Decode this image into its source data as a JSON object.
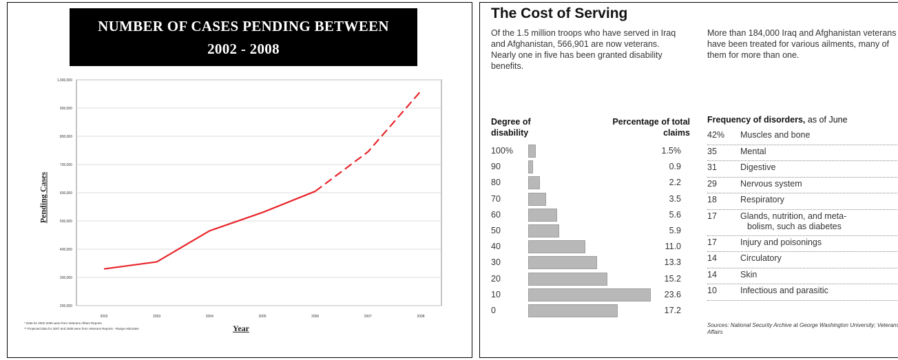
{
  "left_chart": {
    "title_line1": "NUMBER OF CASES PENDING BETWEEN",
    "title_line2": "2002 - 2008",
    "ylabel": "Pending Cases",
    "xlabel": "Year",
    "footnote1": "* Data for 2002-2006 were from Veterans Affairs Reports",
    "footnote2": "** Projected data for 2007 and 2008 were from Veterans Reports - Range estimates"
  },
  "right_panel": {
    "title": "The Cost of Serving",
    "intro": "Of the 1.5 million troops who have served in Iraq and Afghanistan, 566,901 are now veterans. Nearly one in five has been granted disability benefits.",
    "treated": "More than 184,000 Iraq and Afghanistan veterans have been treated for various ailments, many of them for more than one.",
    "degree_header": "Degree of disability",
    "pct_header": "Percentage of total claims",
    "freq_title_bold": "Frequency of disorders,",
    "freq_title_rest": " as of June",
    "sources": "Sources: National Security Archive at George Washington University; Veterans Affairs"
  },
  "chart_data": [
    {
      "type": "line",
      "title": "NUMBER OF CASES PENDING BETWEEN 2002 - 2008",
      "xlabel": "Year",
      "ylabel": "Pending Cases",
      "x": [
        2002,
        2003,
        2004,
        2005,
        2006,
        2007,
        2008
      ],
      "series": [
        {
          "x": [
            2002,
            2003,
            2004,
            2005,
            2006
          ],
          "values": [
            330000,
            355000,
            465000,
            530000,
            605000
          ],
          "style": "solid",
          "color": "#e8242a"
        },
        {
          "x": [
            2006,
            2007,
            2008
          ],
          "values": [
            605000,
            745000,
            960000
          ],
          "style": "dashed",
          "color": "#e8242a"
        }
      ],
      "yticks": [
        "200,000",
        "300,000",
        "400,000",
        "500,000",
        "600,000",
        "700,000",
        "800,000",
        "900,000",
        "1,000,000"
      ],
      "ylim": [
        200000,
        1000000
      ],
      "grid": true
    },
    {
      "type": "bar",
      "orientation": "horizontal",
      "categories": [
        "100%",
        "90",
        "80",
        "70",
        "60",
        "50",
        "40",
        "30",
        "20",
        "10",
        "0"
      ],
      "values": [
        1.5,
        0.9,
        2.2,
        3.5,
        5.6,
        5.9,
        11.0,
        13.3,
        15.2,
        23.6,
        17.2
      ],
      "value_labels": [
        "1.5%",
        "0.9",
        "2.2",
        "3.5",
        "5.6",
        "5.9",
        "11.0",
        "13.3",
        "15.2",
        "23.6",
        "17.2"
      ],
      "color": "#b8b8b8"
    },
    {
      "type": "table",
      "rows": [
        {
          "value": "42%",
          "label": "Muscles and bone"
        },
        {
          "value": "35",
          "label": "Mental"
        },
        {
          "value": "31",
          "label": "Digestive"
        },
        {
          "value": "29",
          "label": "Nervous system"
        },
        {
          "value": "18",
          "label": "Respiratory"
        },
        {
          "value": "17",
          "label": "Glands, nutrition, and metabolism, such as diabetes",
          "line1": "Glands, nutrition, and meta-",
          "line2": "bolism, such as diabetes"
        },
        {
          "value": "17",
          "label": "Injury and poisonings"
        },
        {
          "value": "14",
          "label": "Circulatory"
        },
        {
          "value": "14",
          "label": "Skin"
        },
        {
          "value": "10",
          "label": "Infectious and parasitic"
        }
      ]
    }
  ]
}
